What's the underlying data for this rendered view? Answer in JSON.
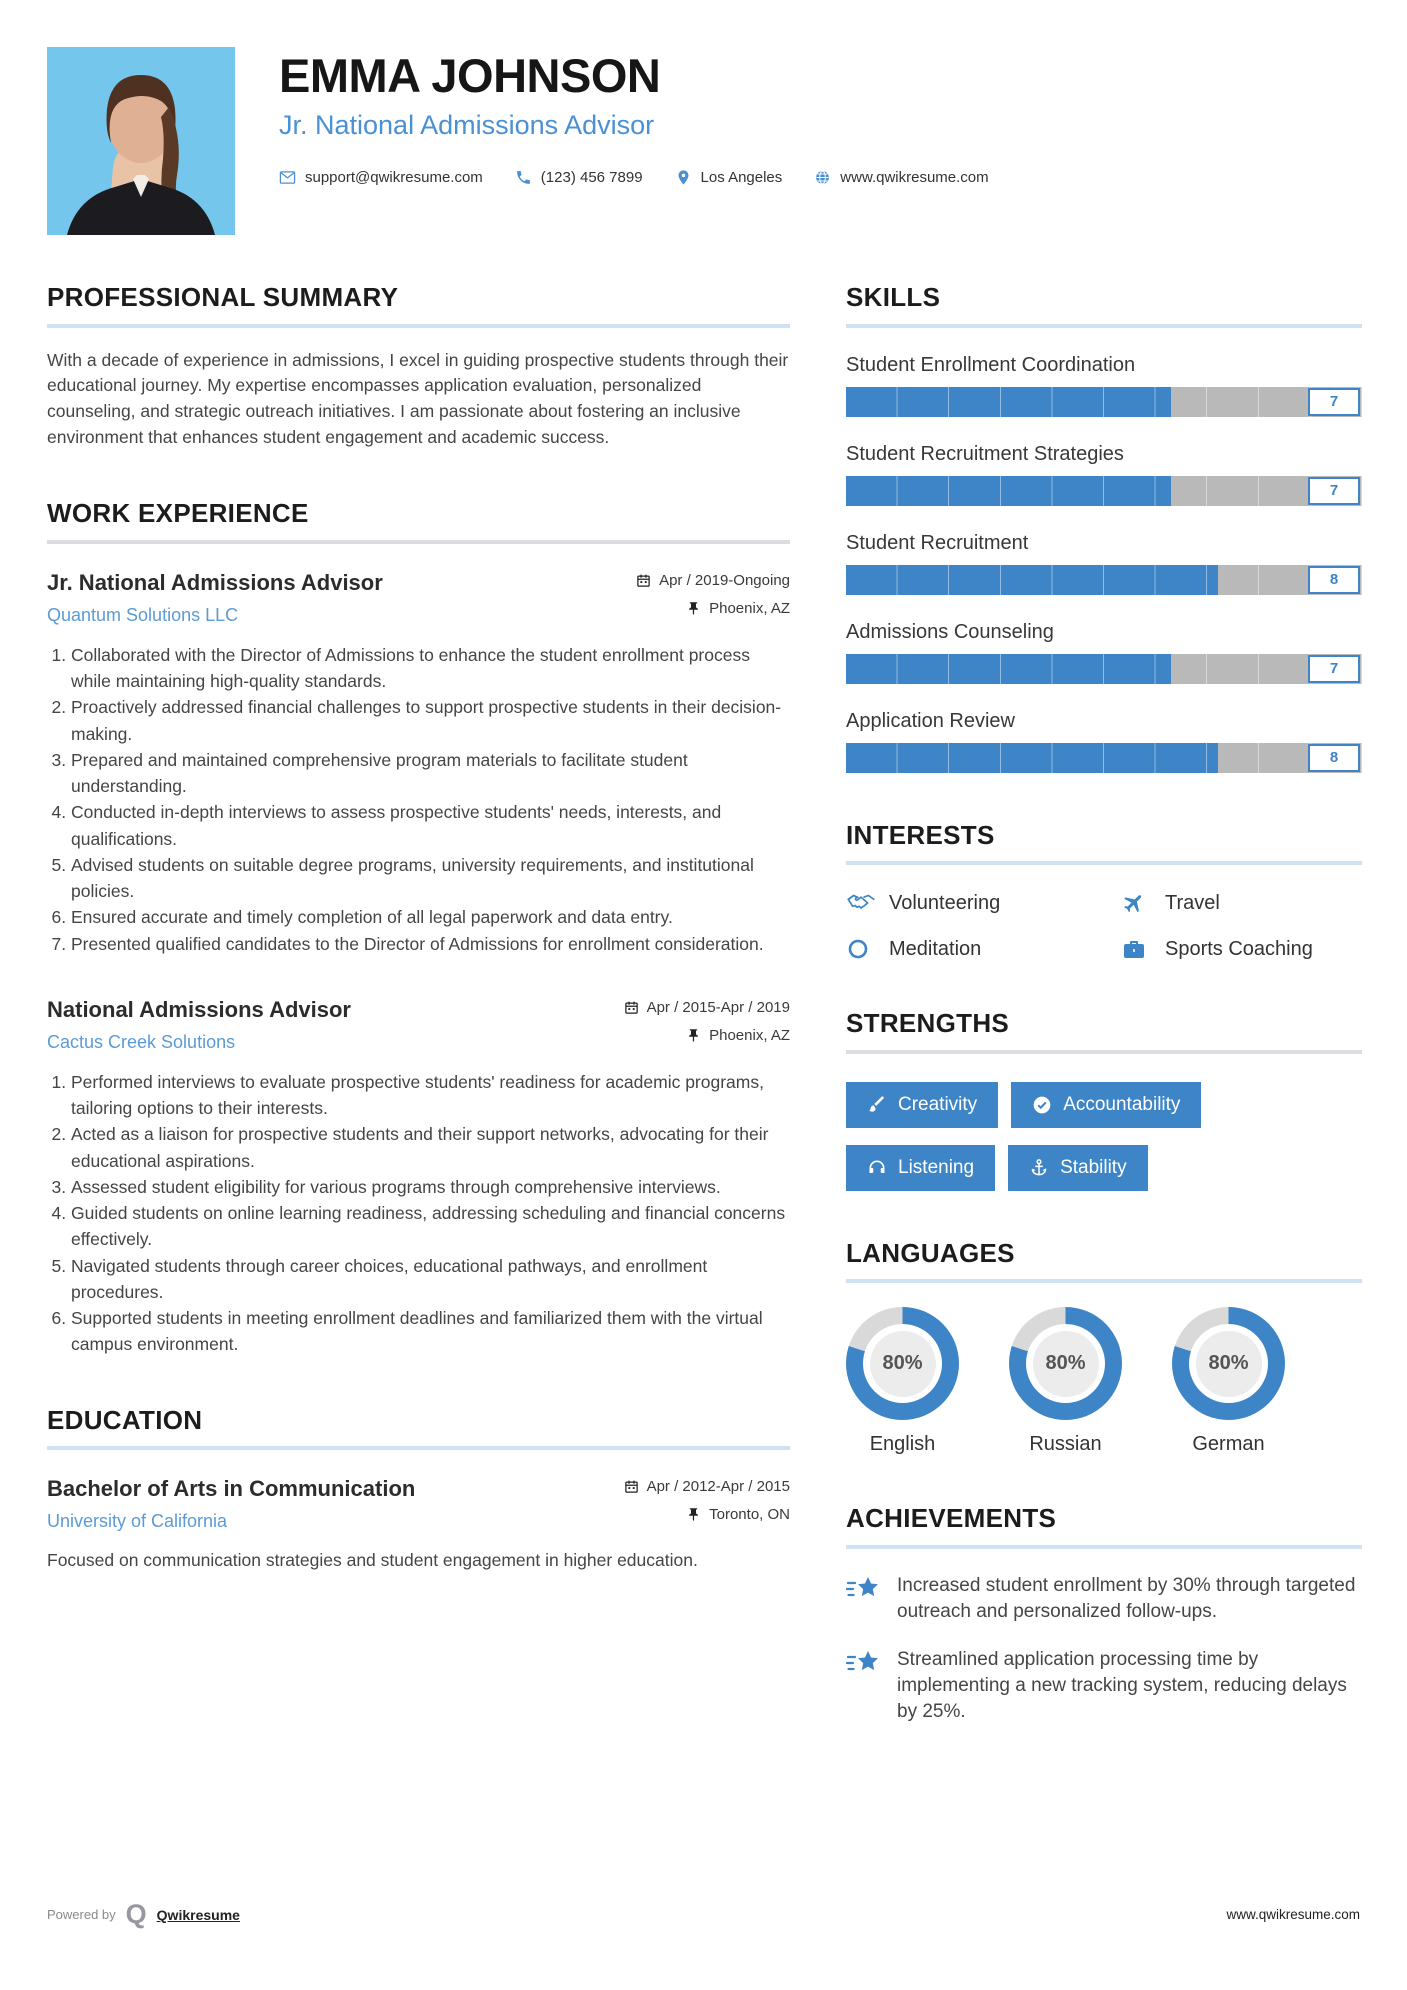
{
  "header": {
    "name": "EMMA JOHNSON",
    "title": "Jr. National Admissions Advisor",
    "contact": {
      "email": "support@qwikresume.com",
      "phone": "(123) 456 7899",
      "location": "Los Angeles",
      "website": "www.qwikresume.com"
    }
  },
  "summary": {
    "heading": "PROFESSIONAL SUMMARY",
    "text": "With a decade of experience in admissions, I excel in guiding prospective students through their educational journey. My expertise encompasses application evaluation, personalized counseling, and strategic outreach initiatives. I am passionate about fostering an inclusive environment that enhances student engagement and academic success."
  },
  "work": {
    "heading": "WORK EXPERIENCE",
    "jobs": [
      {
        "title": "Jr. National Admissions Advisor",
        "company": "Quantum Solutions LLC",
        "dates": "Apr / 2019-Ongoing",
        "location": "Phoenix, AZ",
        "bullets": [
          "Collaborated with the Director of Admissions to enhance the student enrollment process while maintaining high-quality standards.",
          "Proactively addressed financial challenges to support prospective students in their decision-making.",
          "Prepared and maintained comprehensive program materials to facilitate student understanding.",
          "Conducted in-depth interviews to assess prospective students' needs, interests, and qualifications.",
          "Advised students on suitable degree programs, university requirements, and institutional policies.",
          "Ensured accurate and timely completion of all legal paperwork and data entry.",
          "Presented qualified candidates to the Director of Admissions for enrollment consideration."
        ]
      },
      {
        "title": "National Admissions Advisor",
        "company": "Cactus Creek Solutions",
        "dates": "Apr / 2015-Apr / 2019",
        "location": "Phoenix, AZ",
        "bullets": [
          "Performed interviews to evaluate prospective students' readiness for academic programs, tailoring options to their interests.",
          "Acted as a liaison for prospective students and their support networks, advocating for their educational aspirations.",
          "Assessed student eligibility for various programs through comprehensive interviews.",
          "Guided students on online learning readiness, addressing scheduling and financial concerns effectively.",
          "Navigated students through career choices, educational pathways, and enrollment procedures.",
          "Supported students in meeting enrollment deadlines and familiarized them with the virtual campus environment."
        ]
      }
    ]
  },
  "education": {
    "heading": "EDUCATION",
    "degree": "Bachelor of Arts in Communication",
    "school": "University of California",
    "dates": "Apr / 2012-Apr / 2015",
    "location": "Toronto, ON",
    "description": "Focused on communication strategies and student engagement in higher education."
  },
  "skills": {
    "heading": "SKILLS",
    "scale_max": 10,
    "items": [
      {
        "label": "Student Enrollment Coordination",
        "value": 7
      },
      {
        "label": "Student Recruitment Strategies",
        "value": 7
      },
      {
        "label": "Student Recruitment",
        "value": 8
      },
      {
        "label": "Admissions Counseling",
        "value": 7
      },
      {
        "label": "Application Review",
        "value": 8
      }
    ]
  },
  "interests": {
    "heading": "INTERESTS",
    "items": [
      {
        "label": "Volunteering",
        "icon": "handshake-icon"
      },
      {
        "label": "Travel",
        "icon": "plane-icon"
      },
      {
        "label": "Meditation",
        "icon": "circle-icon"
      },
      {
        "label": "Sports Coaching",
        "icon": "briefcase-icon"
      }
    ]
  },
  "strengths": {
    "heading": "STRENGTHS",
    "items": [
      {
        "label": "Creativity",
        "icon": "paintbrush-icon"
      },
      {
        "label": "Accountability",
        "icon": "check-circle-icon"
      },
      {
        "label": "Listening",
        "icon": "headphones-icon"
      },
      {
        "label": "Stability",
        "icon": "anchor-icon"
      }
    ]
  },
  "languages": {
    "heading": "LANGUAGES",
    "items": [
      {
        "label": "English",
        "percent": 80,
        "display": "80%"
      },
      {
        "label": "Russian",
        "percent": 80,
        "display": "80%"
      },
      {
        "label": "German",
        "percent": 80,
        "display": "80%"
      }
    ]
  },
  "achievements": {
    "heading": "ACHIEVEMENTS",
    "items": [
      {
        "text": "Increased student enrollment by 30% through targeted outreach and personalized follow-ups."
      },
      {
        "text": "Streamlined application processing time by implementing a new tracking system, reducing delays by 25%."
      }
    ]
  },
  "footer": {
    "powered_by": "Powered by",
    "brand": "Qwikresume",
    "site": "www.qwikresume.com"
  },
  "colors": {
    "accent": "#3d85c6",
    "link_blue": "#5b9bd5",
    "title_blue": "#4a90d5",
    "bar_track": "#b9b9b9",
    "donut_rest": "#d9d9d9",
    "divider_blue": "#cfe2f3",
    "divider_gray": "#dbdbe0",
    "photo_bg": "#74c6ec"
  }
}
